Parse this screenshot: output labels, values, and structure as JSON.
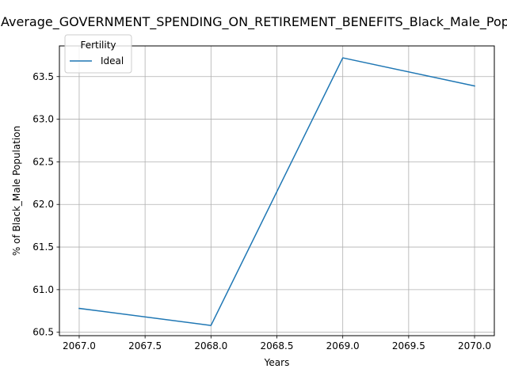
{
  "chart_data": {
    "type": "line",
    "title": "Average_GOVERNMENT_SPENDING_ON_RETIREMENT_BENEFITS_Black_Male_Population",
    "xlabel": "Years",
    "ylabel": "% of Black_Male Population",
    "x": [
      2067,
      2068,
      2069,
      2070
    ],
    "xticks": [
      "2067.0",
      "2067.5",
      "2068.0",
      "2068.5",
      "2069.0",
      "2069.5",
      "2070.0"
    ],
    "yticks": [
      "60.5",
      "61.0",
      "61.5",
      "62.0",
      "62.5",
      "63.0",
      "63.5"
    ],
    "xlim": [
      2066.85,
      2070.15
    ],
    "ylim": [
      60.46,
      63.86
    ],
    "grid": true,
    "legend": {
      "title": "Fertility",
      "placement": "top-left"
    },
    "series": [
      {
        "name": "Ideal",
        "color": "#1f77b4",
        "values": [
          60.78,
          60.58,
          63.72,
          63.39
        ]
      }
    ]
  }
}
